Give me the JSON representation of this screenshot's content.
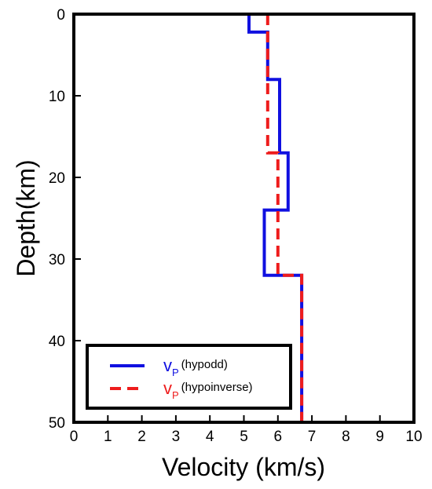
{
  "chart_data": {
    "type": "line",
    "title": "",
    "xlabel": "Velocity (km/s)",
    "ylabel": "Depth(km)",
    "xlim": [
      0,
      10
    ],
    "ylim": [
      0,
      50
    ],
    "y_inverted": true,
    "grid": false,
    "legend_position": "bottom-left",
    "x_ticks": [
      "0",
      "1",
      "2",
      "3",
      "4",
      "5",
      "6",
      "7",
      "8",
      "9",
      "10"
    ],
    "y_ticks": [
      "0",
      "10",
      "20",
      "30",
      "40",
      "50"
    ],
    "series": [
      {
        "name_main": "v",
        "name_sub": "P",
        "name_note": "(hypodd)",
        "color": "#1010e0",
        "style": "solid",
        "points": [
          [
            5.15,
            0
          ],
          [
            5.15,
            2.2
          ],
          [
            5.7,
            2.2
          ],
          [
            5.7,
            8
          ],
          [
            6.05,
            8
          ],
          [
            6.05,
            17
          ],
          [
            6.3,
            17
          ],
          [
            6.3,
            24
          ],
          [
            5.6,
            24
          ],
          [
            5.6,
            32
          ],
          [
            6.7,
            32
          ],
          [
            6.7,
            50
          ]
        ]
      },
      {
        "name_main": "v",
        "name_sub": "P",
        "name_note": "(hypoinverse)",
        "color": "#ee1c1c",
        "style": "dashed",
        "points": [
          [
            5.7,
            0
          ],
          [
            5.7,
            17
          ],
          [
            6.0,
            17
          ],
          [
            6.0,
            32
          ],
          [
            6.7,
            32
          ],
          [
            6.7,
            50
          ]
        ]
      }
    ]
  }
}
